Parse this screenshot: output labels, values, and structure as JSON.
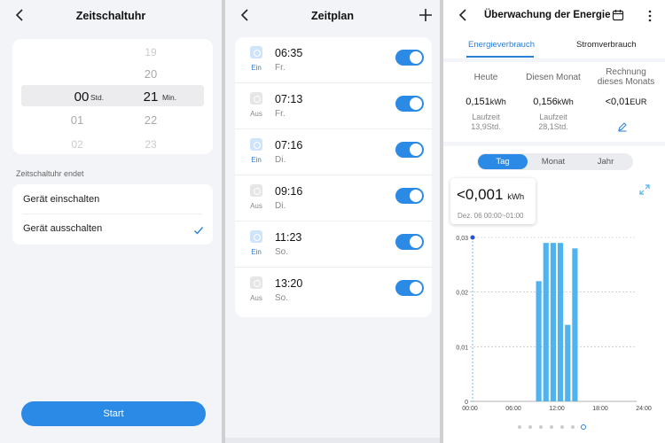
{
  "timer": {
    "title": "Zeitschaltuhr",
    "picker": {
      "hours": [
        "",
        "",
        "00",
        "01",
        "02"
      ],
      "minutes": [
        "19",
        "20",
        "21",
        "22",
        "23"
      ],
      "hour_unit": "Std.",
      "minute_unit": "Min."
    },
    "ends_label": "Zeitschaltuhr endet",
    "options": [
      {
        "label": "Gerät einschalten",
        "checked": false
      },
      {
        "label": "Gerät ausschalten",
        "checked": true
      }
    ],
    "start_label": "Start"
  },
  "schedule": {
    "title": "Zeitplan",
    "add_icon": "plus-icon",
    "items": [
      {
        "state": "Ein",
        "on": true,
        "time": "06:35",
        "day": "Fr."
      },
      {
        "state": "Aus",
        "on": false,
        "time": "07:13",
        "day": "Fr."
      },
      {
        "state": "Ein",
        "on": true,
        "time": "07:16",
        "day": "Di."
      },
      {
        "state": "Aus",
        "on": false,
        "time": "09:16",
        "day": "Di."
      },
      {
        "state": "Ein",
        "on": true,
        "time": "11:23",
        "day": "So."
      },
      {
        "state": "Aus",
        "on": false,
        "time": "13:20",
        "day": "So."
      }
    ]
  },
  "energy": {
    "title": "Überwachung der Energie",
    "tabs": [
      "Energieverbrauch",
      "Stromverbrauch"
    ],
    "stats": [
      {
        "head": "Heute",
        "value": "0,151",
        "unit": "kWh",
        "sub1": "Laufzeit",
        "sub2": "13,9Std."
      },
      {
        "head": "Diesen Monat",
        "value": "0,156",
        "unit": "kWh",
        "sub1": "Laufzeit",
        "sub2": "28,1Std."
      },
      {
        "head1": "Rechnung",
        "head2": "dieses Monats",
        "value": "<0,01",
        "unit": "EUR"
      }
    ],
    "periods": [
      "Tag",
      "Monat",
      "Jahr"
    ],
    "tooltip": {
      "value": "<0,001",
      "unit": "kWh",
      "range": "Dez. 06 00:00~01:00"
    },
    "colors": {
      "accent": "#2a8ae6",
      "bar": "#4fb3f0"
    }
  },
  "chart_data": {
    "type": "bar",
    "x": [
      "00:00",
      "01:00",
      "02:00",
      "03:00",
      "04:00",
      "05:00",
      "06:00",
      "07:00",
      "08:00",
      "09:00",
      "10:00",
      "11:00",
      "12:00",
      "13:00",
      "14:00",
      "15:00",
      "16:00",
      "17:00",
      "18:00",
      "19:00",
      "20:00",
      "21:00",
      "22:00",
      "23:00"
    ],
    "values": [
      0,
      0,
      0,
      0,
      0,
      0,
      0,
      0,
      0,
      0.022,
      0.029,
      0.029,
      0.029,
      0.014,
      0.028,
      0,
      0,
      0,
      0,
      0,
      0,
      0,
      0,
      0
    ],
    "xticks": [
      "00:00",
      "06:00",
      "12:00",
      "18:00",
      "24:00"
    ],
    "yticks": [
      "0",
      "0,01",
      "0,02",
      "0,03"
    ],
    "ylim": [
      0,
      0.03
    ],
    "highlight_x": "00:00",
    "grid": true
  }
}
